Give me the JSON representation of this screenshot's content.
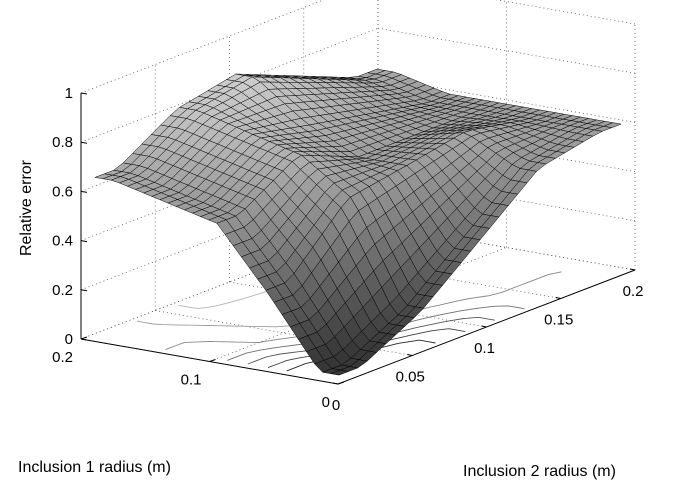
{
  "chart_data": {
    "type": "surface",
    "title": "",
    "xlabel": "Inclusion 2 radius (m)",
    "ylabel": "Inclusion 1 radius (m)",
    "zlabel": "Relative error",
    "xlim": [
      0,
      0.2
    ],
    "ylim": [
      0,
      0.2
    ],
    "zlim": [
      0,
      1
    ],
    "x_ticks": [
      "0",
      "0.05",
      "0.1",
      "0.15",
      "0.2"
    ],
    "y_ticks": [
      "0",
      "0.1",
      "0.2"
    ],
    "z_ticks": [
      "0",
      "0.2",
      "0.4",
      "0.6",
      "0.8",
      "1"
    ],
    "grid": true,
    "contour_projection": true,
    "colormap": "gray",
    "surface_summary": {
      "inclusion2_radius": [
        0.02,
        0.06,
        0.1,
        0.14,
        0.18
      ],
      "inclusion1_radius": [
        0.02,
        0.06,
        0.1,
        0.14,
        0.18
      ],
      "relative_error": [
        [
          0.02,
          0.15,
          0.35,
          0.55,
          0.6
        ],
        [
          0.3,
          0.55,
          0.6,
          0.65,
          0.6
        ],
        [
          0.55,
          0.7,
          0.6,
          0.6,
          0.6
        ],
        [
          0.6,
          0.75,
          0.7,
          0.65,
          0.6
        ],
        [
          0.65,
          0.8,
          0.85,
          0.75,
          0.65
        ]
      ]
    }
  }
}
